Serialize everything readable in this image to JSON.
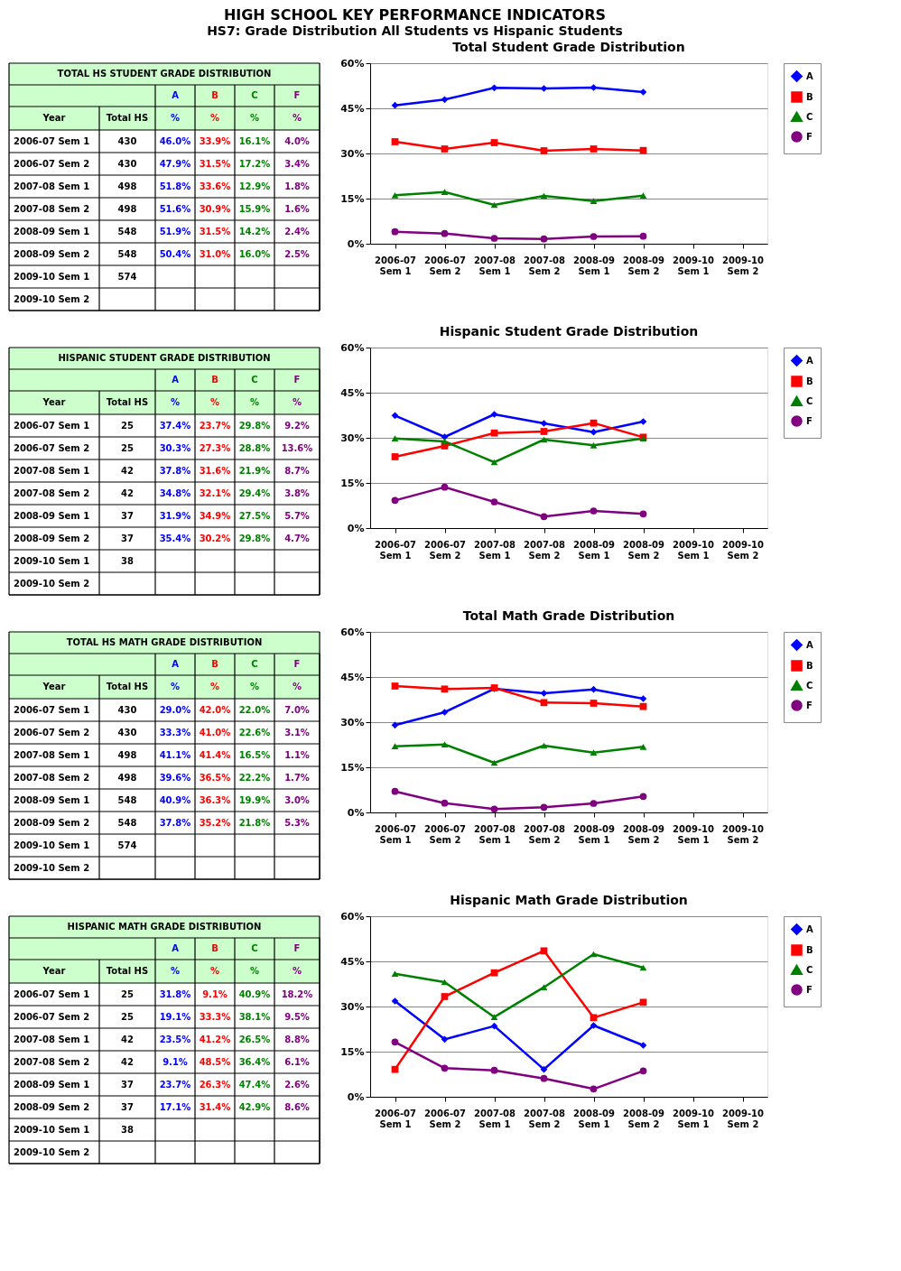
{
  "chart_data": [
    {
      "type": "line",
      "title": "Total Student Grade Distribution",
      "categories": [
        "2006-07 Sem 1",
        "2006-07 Sem 2",
        "2007-08 Sem 1",
        "2007-08 Sem 2",
        "2008-09 Sem 1",
        "2008-09 Sem 2",
        "2009-10 Sem 1",
        "2009-10 Sem 2"
      ],
      "ylim": [
        0,
        60
      ],
      "yticks": [
        {
          "value": 0,
          "label": "0%"
        },
        {
          "value": 15,
          "label": "15%"
        },
        {
          "value": 30,
          "label": "30%"
        },
        {
          "value": 45,
          "label": "45%"
        },
        {
          "value": 60,
          "label": "60%"
        }
      ],
      "grid": "y",
      "legend": "right",
      "line_style": "solid",
      "series": [
        {
          "name": "A",
          "color": "#0000ff",
          "marker": "diamond",
          "values": [
            46.0,
            47.9,
            51.8,
            51.6,
            51.9,
            50.4,
            null,
            null
          ]
        },
        {
          "name": "B",
          "color": "#ff0000",
          "marker": "square",
          "values": [
            33.9,
            31.5,
            33.6,
            30.9,
            31.5,
            31.0,
            null,
            null
          ]
        },
        {
          "name": "C",
          "color": "#008000",
          "marker": "triangle",
          "values": [
            16.1,
            17.2,
            12.9,
            15.9,
            14.2,
            16.0,
            null,
            null
          ]
        },
        {
          "name": "F",
          "color": "#800080",
          "marker": "circle",
          "values": [
            4.0,
            3.4,
            1.8,
            1.6,
            2.4,
            2.5,
            null,
            null
          ]
        }
      ],
      "annotations": [
        "TOTAL HS STUDENT GRADE DISTRIBUTION",
        "Year",
        "Total HS",
        "%",
        "430",
        "430",
        "498",
        "498",
        "548",
        "548",
        "574",
        "46.0%",
        "47.9%",
        "51.8%",
        "51.6%",
        "51.9%",
        "50.4%",
        "33.9%",
        "31.5%",
        "33.6%",
        "30.9%",
        "31.5%",
        "31.0%",
        "16.1%",
        "17.2%",
        "12.9%",
        "15.9%",
        "14.2%",
        "16.0%",
        "4.0%",
        "3.4%",
        "1.8%",
        "1.6%",
        "2.4%",
        "2.5%",
        "HIGH SCHOOL KEY PERFORMANCE INDICATORS",
        "HS7: Grade Distribution All Students vs Hispanic Students"
      ]
    },
    {
      "type": "line",
      "title": "Hispanic Student Grade Distribution",
      "categories": [
        "2006-07 Sem 1",
        "2006-07 Sem 2",
        "2007-08 Sem 1",
        "2007-08 Sem 2",
        "2008-09 Sem 1",
        "2008-09 Sem 2",
        "2009-10 Sem 1",
        "2009-10 Sem 2"
      ],
      "ylim": [
        0,
        60
      ],
      "yticks": [
        {
          "value": 0,
          "label": "0%"
        },
        {
          "value": 15,
          "label": "15%"
        },
        {
          "value": 30,
          "label": "30%"
        },
        {
          "value": 45,
          "label": "45%"
        },
        {
          "value": 60,
          "label": "60%"
        }
      ],
      "grid": "y",
      "legend": "right",
      "line_style": "solid",
      "series": [
        {
          "name": "A",
          "color": "#0000ff",
          "marker": "diamond",
          "values": [
            37.4,
            30.3,
            37.8,
            34.8,
            31.9,
            35.4,
            null,
            null
          ]
        },
        {
          "name": "B",
          "color": "#ff0000",
          "marker": "square",
          "values": [
            23.7,
            27.3,
            31.6,
            32.1,
            34.9,
            30.2,
            null,
            null
          ]
        },
        {
          "name": "C",
          "color": "#008000",
          "marker": "triangle",
          "values": [
            29.8,
            28.8,
            21.9,
            29.4,
            27.5,
            29.8,
            null,
            null
          ]
        },
        {
          "name": "F",
          "color": "#800080",
          "marker": "circle",
          "values": [
            9.2,
            13.6,
            8.7,
            3.8,
            5.7,
            4.7,
            null,
            null
          ]
        }
      ],
      "annotations": [
        "HISPANIC STUDENT GRADE DISTRIBUTION",
        "Year",
        "Total HS",
        "%",
        "25",
        "25",
        "42",
        "42",
        "37",
        "37",
        "38",
        "37.4%",
        "30.3%",
        "37.8%",
        "34.8%",
        "31.9%",
        "35.4%",
        "23.7%",
        "27.3%",
        "31.6%",
        "32.1%",
        "34.9%",
        "30.2%",
        "29.8%",
        "28.8%",
        "21.9%",
        "29.4%",
        "27.5%",
        "29.8%",
        "9.2%",
        "13.6%",
        "8.7%",
        "3.8%",
        "5.7%",
        "4.7%"
      ]
    },
    {
      "type": "line",
      "title": "Total Math Grade Distribution",
      "categories": [
        "2006-07 Sem 1",
        "2006-07 Sem 2",
        "2007-08 Sem 1",
        "2007-08 Sem 2",
        "2008-09 Sem 1",
        "2008-09 Sem 2",
        "2009-10 Sem 1",
        "2009-10 Sem 2"
      ],
      "ylim": [
        0,
        60
      ],
      "yticks": [
        {
          "value": 0,
          "label": "0%"
        },
        {
          "value": 15,
          "label": "15%"
        },
        {
          "value": 30,
          "label": "30%"
        },
        {
          "value": 45,
          "label": "45%"
        },
        {
          "value": 60,
          "label": "60%"
        }
      ],
      "grid": "y",
      "legend": "right",
      "line_style": "solid",
      "series": [
        {
          "name": "A",
          "color": "#0000ff",
          "marker": "diamond",
          "values": [
            29.0,
            33.3,
            41.1,
            39.6,
            40.9,
            37.8,
            null,
            null
          ]
        },
        {
          "name": "B",
          "color": "#ff0000",
          "marker": "square",
          "values": [
            42.0,
            41.0,
            41.4,
            36.5,
            36.3,
            35.2,
            null,
            null
          ]
        },
        {
          "name": "C",
          "color": "#008000",
          "marker": "triangle",
          "values": [
            22.0,
            22.6,
            16.5,
            22.2,
            19.9,
            21.8,
            null,
            null
          ]
        },
        {
          "name": "F",
          "color": "#800080",
          "marker": "circle",
          "values": [
            7.0,
            3.1,
            1.1,
            1.7,
            3.0,
            5.3,
            null,
            null
          ]
        }
      ],
      "annotations": [
        "TOTAL HS MATH GRADE DISTRIBUTION",
        "Year",
        "Total HS",
        "%",
        "430",
        "430",
        "498",
        "498",
        "548",
        "548",
        "574",
        "29.0%",
        "33.3%",
        "41.1%",
        "39.6%",
        "40.9%",
        "37.8%",
        "42.0%",
        "41.0%",
        "41.4%",
        "36.5%",
        "36.3%",
        "35.2%",
        "22.0%",
        "22.6%",
        "16.5%",
        "22.2%",
        "19.9%",
        "21.8%",
        "7.0%",
        "3.1%",
        "1.1%",
        "1.7%",
        "3.0%",
        "5.3%"
      ]
    },
    {
      "type": "line",
      "title": "Hispanic Math Grade Distribution",
      "categories": [
        "2006-07 Sem 1",
        "2006-07 Sem 2",
        "2007-08 Sem 1",
        "2007-08 Sem 2",
        "2008-09 Sem 1",
        "2008-09 Sem 2",
        "2009-10 Sem 1",
        "2009-10 Sem 2"
      ],
      "ylim": [
        0,
        60
      ],
      "yticks": [
        {
          "value": 0,
          "label": "0%"
        },
        {
          "value": 15,
          "label": "15%"
        },
        {
          "value": 30,
          "label": "30%"
        },
        {
          "value": 45,
          "label": "45%"
        },
        {
          "value": 60,
          "label": "60%"
        }
      ],
      "grid": "y",
      "legend": "right",
      "line_style": "solid",
      "series": [
        {
          "name": "A",
          "color": "#0000ff",
          "marker": "diamond",
          "values": [
            31.8,
            19.1,
            23.5,
            9.1,
            23.7,
            17.1,
            null,
            null
          ]
        },
        {
          "name": "B",
          "color": "#ff0000",
          "marker": "square",
          "values": [
            9.1,
            33.3,
            41.2,
            48.5,
            26.3,
            31.4,
            null,
            null
          ]
        },
        {
          "name": "C",
          "color": "#008000",
          "marker": "triangle",
          "values": [
            40.9,
            38.1,
            26.5,
            36.4,
            47.4,
            42.9,
            null,
            null
          ]
        },
        {
          "name": "F",
          "color": "#800080",
          "marker": "circle",
          "values": [
            18.2,
            9.5,
            8.8,
            6.1,
            2.6,
            8.6,
            null,
            null
          ]
        }
      ],
      "annotations": [
        "HISPANIC MATH GRADE DISTRIBUTION",
        "Year",
        "Total HS",
        "%",
        "25",
        "25",
        "42",
        "42",
        "37",
        "37",
        "38",
        "31.8%",
        "19.1%",
        "23.5%",
        "9.1%",
        "23.7%",
        "17.1%",
        "9.1%",
        "33.3%",
        "41.2%",
        "48.5%",
        "26.3%",
        "31.4%",
        "40.9%",
        "38.1%",
        "26.5%",
        "36.4%",
        "47.4%",
        "42.9%",
        "18.2%",
        "9.5%",
        "8.8%",
        "6.1%",
        "2.6%",
        "8.6%"
      ]
    }
  ]
}
